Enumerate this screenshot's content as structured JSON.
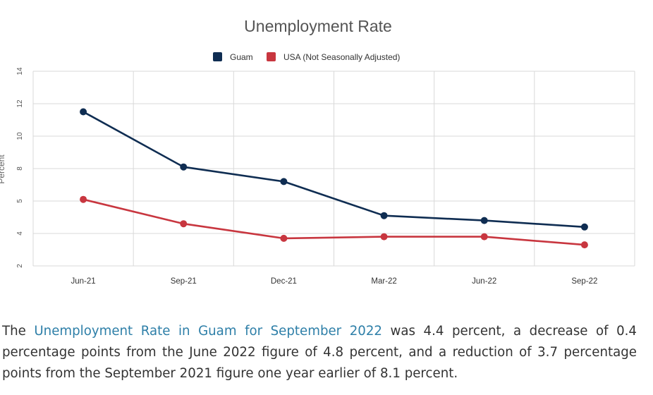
{
  "colors": {
    "guam": "#0f2d52",
    "usa": "#c8363f",
    "grid": "#d9d9d9",
    "link": "#2e7fa8"
  },
  "chart_data": {
    "type": "line",
    "title": "Unemployment Rate",
    "ylabel": "Percent",
    "xlabel": "",
    "categories": [
      "Jun-21",
      "Sep-21",
      "Dec-21",
      "Mar-22",
      "Jun-22",
      "Sep-22"
    ],
    "y_ticks": [
      "2",
      "4",
      "5",
      "8",
      "10",
      "12",
      "14"
    ],
    "ylim": [
      2,
      14
    ],
    "grid": true,
    "legend_position": "top-center",
    "series": [
      {
        "name": "Guam",
        "color": "#0f2d52",
        "values": [
          11.5,
          8.1,
          7.2,
          5.1,
          4.8,
          4.4
        ]
      },
      {
        "name": "USA (Not Seasonally Adjusted)",
        "color": "#c8363f",
        "values": [
          6.1,
          4.6,
          3.7,
          3.8,
          3.8,
          3.3
        ]
      }
    ]
  },
  "summary": {
    "pre": "The ",
    "link": "Unemployment Rate in Guam for September 2022",
    "post": " was 4.4 percent, a decrease of 0.4 percentage points from the June 2022 figure of 4.8 percent, and a reduction of 3.7 percentage points from the September 2021 figure one year earlier of 8.1 percent."
  }
}
